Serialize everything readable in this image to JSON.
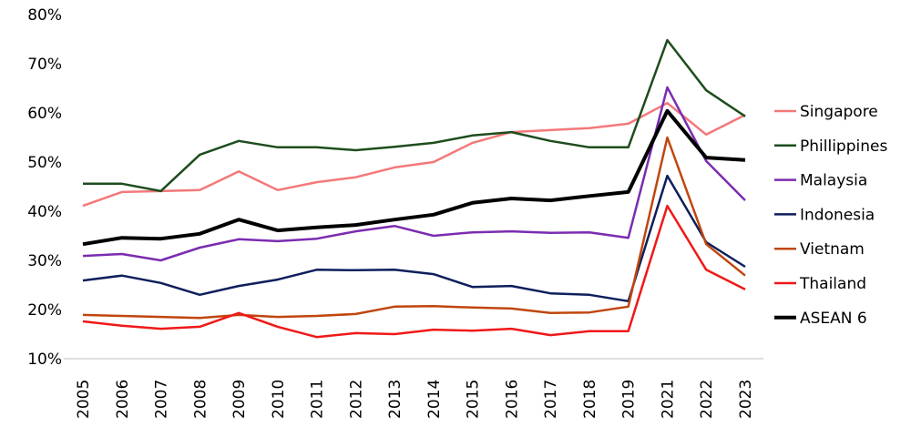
{
  "chart_data": {
    "type": "line",
    "title": "",
    "xlabel": "",
    "ylabel": "",
    "ylim": [
      10,
      80
    ],
    "yticks": [
      "10%",
      "20%",
      "30%",
      "40%",
      "50%",
      "60%",
      "70%",
      "80%"
    ],
    "ytick_values": [
      10,
      20,
      30,
      40,
      50,
      60,
      70,
      80
    ],
    "grid": false,
    "legend_position": "right",
    "categories": [
      "2005",
      "2006",
      "2007",
      "2008",
      "2009",
      "2010",
      "2011",
      "2012",
      "2013",
      "2014",
      "2015",
      "2016",
      "2017",
      "2018",
      "2019",
      "2021",
      "2022",
      "2023"
    ],
    "series": [
      {
        "name": "Singapore",
        "color": "#f4787a",
        "width": 2.5,
        "values": [
          41.1,
          43.9,
          44.1,
          44.3,
          48.1,
          44.3,
          45.9,
          46.9,
          48.9,
          50.0,
          53.9,
          56.1,
          56.5,
          56.9,
          57.8,
          62.0,
          55.6,
          59.6
        ]
      },
      {
        "name": "Phillippines",
        "color": "#1e4d1e",
        "width": 2.5,
        "values": [
          45.6,
          45.6,
          44.1,
          51.5,
          54.3,
          53.0,
          53.0,
          52.4,
          53.1,
          53.9,
          55.4,
          56.1,
          54.3,
          53.0,
          53.0,
          74.8,
          64.6,
          59.3
        ]
      },
      {
        "name": "Malaysia",
        "color": "#7b2cb0",
        "width": 2.5,
        "values": [
          30.9,
          31.3,
          30.0,
          32.6,
          34.3,
          33.9,
          34.4,
          35.9,
          37.0,
          35.0,
          35.7,
          35.9,
          35.6,
          35.7,
          34.6,
          65.2,
          50.2,
          42.2
        ]
      },
      {
        "name": "Indonesia",
        "color": "#0d1f5c",
        "width": 2.5,
        "values": [
          25.9,
          26.9,
          25.4,
          23.0,
          24.8,
          26.1,
          28.1,
          28.0,
          28.1,
          27.2,
          24.6,
          24.8,
          23.3,
          23.0,
          21.7,
          47.2,
          33.7,
          28.7
        ]
      },
      {
        "name": "Vietnam",
        "color": "#c0460e",
        "width": 2.5,
        "values": [
          18.9,
          18.7,
          18.5,
          18.3,
          18.9,
          18.5,
          18.7,
          19.1,
          20.6,
          20.7,
          20.4,
          20.2,
          19.3,
          19.4,
          20.6,
          55.0,
          33.3,
          26.9
        ]
      },
      {
        "name": "Thailand",
        "color": "#f01818",
        "width": 2.5,
        "values": [
          17.6,
          16.7,
          16.1,
          16.5,
          19.3,
          16.5,
          14.4,
          15.2,
          15.0,
          15.9,
          15.7,
          16.1,
          14.8,
          15.6,
          15.6,
          41.1,
          28.1,
          24.1
        ]
      },
      {
        "name": "ASEAN 6",
        "color": "#000000",
        "width": 4,
        "values": [
          33.3,
          34.6,
          34.4,
          35.4,
          38.3,
          36.1,
          36.7,
          37.2,
          38.3,
          39.3,
          41.7,
          42.6,
          42.2,
          43.1,
          43.9,
          60.4,
          50.9,
          50.4
        ]
      }
    ]
  }
}
